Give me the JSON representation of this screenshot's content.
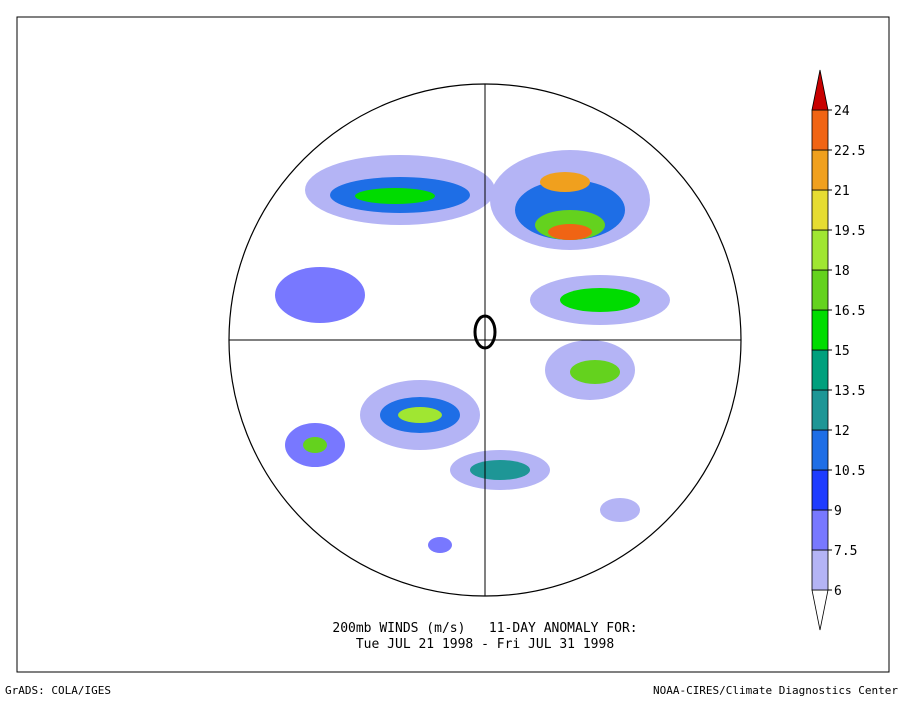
{
  "caption": {
    "line1": "200mb WINDS (m/s)   11-DAY ANOMALY FOR:",
    "line2": "Tue JUL 21 1998 - Fri JUL 31 1998"
  },
  "footer": {
    "left": "GrADS: COLA/IGES",
    "right": "NOAA-CIRES/Climate Diagnostics Center"
  },
  "colorbar": {
    "levels": [
      6,
      7.5,
      9,
      10.5,
      12,
      13.5,
      15,
      16.5,
      18,
      19.5,
      21,
      22.5,
      24
    ],
    "colors": [
      "#ffffff",
      "#b4b4f5",
      "#7878ff",
      "#1e3cff",
      "#1e6ee6",
      "#1e9696",
      "#00a07d",
      "#00dc00",
      "#64d21e",
      "#a0e632",
      "#e6dc32",
      "#f0a01e",
      "#f06414",
      "#c80000"
    ]
  }
}
